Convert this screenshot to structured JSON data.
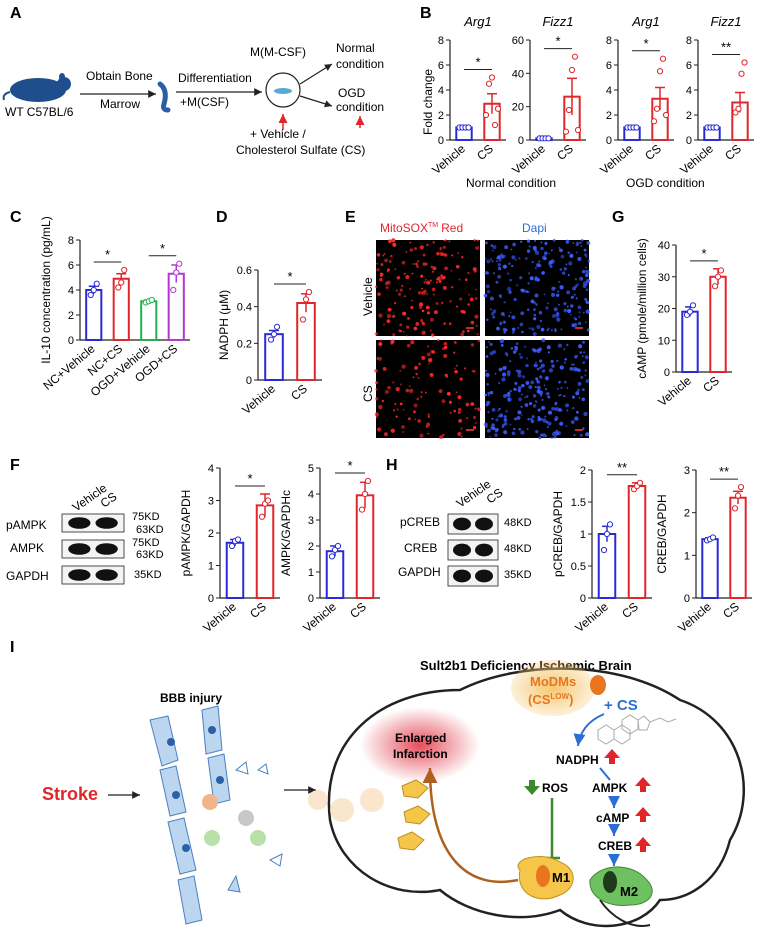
{
  "panel_letters": [
    "A",
    "B",
    "C",
    "D",
    "E",
    "F",
    "G",
    "H",
    "I"
  ],
  "panel_a": {
    "mouse_label": "WT C57BL/6",
    "step1": "Obtain Bone",
    "step1b": "Marrow",
    "step2": "Differentiation",
    "step2b": "+M(CSF)",
    "dish_label": "M(M-CSF)",
    "normal_1": "Normal",
    "normal_2": "condition",
    "ogd_1": "OGD",
    "ogd_2": "condition",
    "treat_1": "+ Vehicle /",
    "treat_2": "Cholesterol Sulfate (CS)"
  },
  "panel_b": {
    "ylabel": "Fold change",
    "group1": "Normal condition",
    "group2": "OGD condition"
  },
  "panel_e": {
    "title_red": "MitoSOX",
    "title_tm": "TM",
    "title_red2": "Red",
    "title_blue": "Dapi",
    "row1": "Vehicle",
    "row2": "CS"
  },
  "panel_f": {
    "blot_rows": [
      "pAMPK",
      "AMPK",
      "GAPDH"
    ],
    "col_labels": [
      "Vehicle",
      "CS"
    ],
    "mw": [
      "75KD",
      "63KD",
      "75KD",
      "63KD",
      "35KD"
    ]
  },
  "panel_h": {
    "blot_rows": [
      "pCREB",
      "CREB",
      "GAPDH"
    ],
    "col_labels": [
      "Vehicle",
      "CS"
    ],
    "mw": [
      "48KD",
      "48KD",
      "35KD"
    ]
  },
  "panel_i": {
    "title": "Sult2b1 Deficiency Ischemic Brain",
    "bbb": "BBB injury",
    "stroke": "Stroke",
    "modms_1": "MoDMs",
    "modms_2": "(CS",
    "modms_sup": "LOW",
    "modms_3": ")",
    "plus_cs": "+ CS",
    "infarct_1": "Enlarged",
    "infarct_2": "Infarction",
    "nadph": "NADPH",
    "ros": "ROS",
    "ampk": "AMPK",
    "camp": "cAMP",
    "creb": "CREB",
    "m1": "M1",
    "m2": "M2"
  },
  "colors": {
    "vehicle": "#2b2bd6",
    "cs": "#e0262b",
    "ogd_vehicle": "#22b14c",
    "ogd_cs": "#b03ad1"
  },
  "chart_data": [
    {
      "id": "B-Arg1-normal",
      "type": "bar",
      "title": "Arg1",
      "ylabel": "Fold change",
      "categories": [
        "Vehicle",
        "CS"
      ],
      "values": [
        1.0,
        2.9
      ],
      "errors": [
        0.1,
        0.8
      ],
      "ylim": [
        0,
        8
      ],
      "yticks": [
        0,
        2,
        4,
        6,
        8
      ],
      "points": [
        [
          1.0,
          1.0,
          1.0,
          1.0
        ],
        [
          2.0,
          4.5,
          5.0,
          1.2,
          2.5
        ]
      ],
      "sig": "*"
    },
    {
      "id": "B-Fizz1-normal",
      "type": "bar",
      "title": "Fizz1",
      "categories": [
        "Vehicle",
        "CS"
      ],
      "values": [
        1.0,
        26
      ],
      "errors": [
        0.5,
        11
      ],
      "ylim": [
        0,
        60
      ],
      "yticks": [
        0,
        20,
        40,
        60
      ],
      "points": [
        [
          1,
          1,
          1,
          1
        ],
        [
          5,
          18,
          42,
          50,
          6
        ]
      ],
      "sig": "*"
    },
    {
      "id": "B-Arg1-OGD",
      "type": "bar",
      "title": "Arg1",
      "categories": [
        "Vehicle",
        "CS"
      ],
      "values": [
        1.0,
        3.3
      ],
      "errors": [
        0.1,
        0.9
      ],
      "ylim": [
        0,
        8
      ],
      "yticks": [
        0,
        2,
        4,
        6,
        8
      ],
      "points": [
        [
          1,
          1,
          1,
          1
        ],
        [
          1.5,
          2.5,
          5.5,
          6.5,
          2.0
        ]
      ],
      "sig": "*"
    },
    {
      "id": "B-Fizz1-OGD",
      "type": "bar",
      "title": "Fizz1",
      "categories": [
        "Vehicle",
        "CS"
      ],
      "values": [
        1.0,
        3.0
      ],
      "errors": [
        0.1,
        0.8
      ],
      "ylim": [
        0,
        8
      ],
      "yticks": [
        0,
        2,
        4,
        6,
        8
      ],
      "points": [
        [
          1,
          1,
          1,
          1
        ],
        [
          2.2,
          2.5,
          5.3,
          6.2
        ]
      ],
      "sig": "**"
    },
    {
      "id": "C",
      "type": "bar",
      "ylabel": "IL-10 concentration (pg/mL)",
      "categories": [
        "NC+Vehicle",
        "NC+CS",
        "OGD+Vehicle",
        "OGD+CS"
      ],
      "values": [
        4.0,
        4.9,
        3.1,
        5.3
      ],
      "errors": [
        0.3,
        0.4,
        0.1,
        0.7
      ],
      "ylim": [
        0,
        8
      ],
      "yticks": [
        0,
        2,
        4,
        6,
        8
      ],
      "points": [
        [
          3.6,
          4.0,
          4.5
        ],
        [
          4.2,
          4.6,
          5.6
        ],
        [
          3.0,
          3.1,
          3.2
        ],
        [
          4.0,
          5.4,
          6.1
        ]
      ],
      "sig_pairs": [
        [
          0,
          1,
          "*"
        ],
        [
          2,
          3,
          "*"
        ]
      ]
    },
    {
      "id": "D",
      "type": "bar",
      "ylabel": "NADPH (μM)",
      "categories": [
        "Vehicle",
        "CS"
      ],
      "values": [
        0.25,
        0.42
      ],
      "errors": [
        0.02,
        0.05
      ],
      "ylim": [
        0,
        0.6
      ],
      "yticks": [
        0,
        0.2,
        0.4,
        0.6
      ],
      "points": [
        [
          0.22,
          0.25,
          0.29
        ],
        [
          0.33,
          0.44,
          0.48
        ]
      ],
      "sig": "*"
    },
    {
      "id": "G",
      "type": "bar",
      "ylabel": "cAMP (pmole/million cells)",
      "categories": [
        "Vehicle",
        "CS"
      ],
      "values": [
        19,
        30
      ],
      "errors": [
        1.5,
        2.5
      ],
      "ylim": [
        0,
        40
      ],
      "yticks": [
        0,
        10,
        20,
        30,
        40
      ],
      "points": [
        [
          18,
          19,
          21
        ],
        [
          27,
          30,
          32
        ]
      ],
      "sig": "*"
    },
    {
      "id": "F-pAMPK",
      "type": "bar",
      "ylabel": "pAMPK/GAPDH",
      "categories": [
        "Vehicle",
        "CS"
      ],
      "values": [
        1.7,
        2.85
      ],
      "errors": [
        0.1,
        0.35
      ],
      "ylim": [
        0,
        4
      ],
      "yticks": [
        0,
        1,
        2,
        3,
        4
      ],
      "points": [
        [
          1.6,
          1.75,
          1.8
        ],
        [
          2.5,
          2.9,
          3.0
        ]
      ],
      "sig": "*"
    },
    {
      "id": "F-AMPK",
      "type": "bar",
      "ylabel": "AMPK/GAPDHc",
      "categories": [
        "Vehicle",
        "CS"
      ],
      "values": [
        1.8,
        3.95
      ],
      "errors": [
        0.2,
        0.5
      ],
      "ylim": [
        0,
        5
      ],
      "yticks": [
        0,
        1,
        2,
        3,
        4,
        5
      ],
      "points": [
        [
          1.6,
          1.85,
          2.0
        ],
        [
          3.4,
          4.0,
          4.5
        ]
      ],
      "sig": "*"
    },
    {
      "id": "H-pCREB",
      "type": "bar",
      "ylabel": "pCREB/GAPDH",
      "categories": [
        "Vehicle",
        "CS"
      ],
      "values": [
        1.0,
        1.75
      ],
      "errors": [
        0.12,
        0.05
      ],
      "ylim": [
        0,
        2.0
      ],
      "yticks": [
        0,
        0.5,
        1.0,
        1.5,
        2.0
      ],
      "points": [
        [
          0.75,
          1.0,
          1.15
        ],
        [
          1.7,
          1.75,
          1.8
        ]
      ],
      "sig": "**"
    },
    {
      "id": "H-CREB",
      "type": "bar",
      "ylabel": "CREB/GAPDH",
      "categories": [
        "Vehicle",
        "CS"
      ],
      "values": [
        1.38,
        2.35
      ],
      "errors": [
        0.03,
        0.15
      ],
      "ylim": [
        0,
        3
      ],
      "yticks": [
        0,
        1,
        2,
        3
      ],
      "points": [
        [
          1.35,
          1.38,
          1.42
        ],
        [
          2.1,
          2.4,
          2.6
        ]
      ],
      "sig": "**"
    }
  ]
}
